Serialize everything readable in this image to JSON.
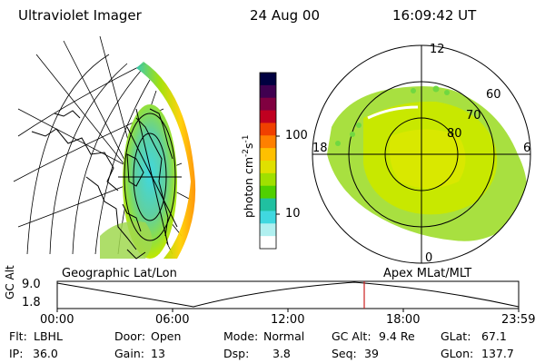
{
  "header": {
    "instrument": "Ultraviolet Imager",
    "date": "24 Aug 00",
    "time": "16:09:42 UT"
  },
  "geo_panel": {
    "label": "Geographic Lat/Lon"
  },
  "polar_panel": {
    "label": "Apex MLat/MLT",
    "mlt_labels": [
      "12",
      "18",
      "6",
      "0"
    ],
    "lat_labels": [
      "60",
      "70",
      "80"
    ]
  },
  "colorbar": {
    "units_label": "photon cm",
    "units_exp1": "-2",
    "units_mid": "s",
    "units_exp2": "-1",
    "ticks": [
      "100",
      "10"
    ],
    "colors": [
      "#000040",
      "#400050",
      "#800040",
      "#c00020",
      "#f04000",
      "#ff8000",
      "#ffc000",
      "#e0e000",
      "#a0e000",
      "#50d000",
      "#20c0a0",
      "#40d8e0",
      "#b0f0f0",
      "#ffffff"
    ]
  },
  "altitude_plot": {
    "ylabel": "GC Alt",
    "yticks": [
      "9.0",
      "1.8"
    ],
    "xticks": [
      "00:00",
      "06:00",
      "12:00",
      "18:00",
      "23:59"
    ],
    "current_time_color": "#cc2020"
  },
  "status": {
    "flt_label": "Flt:",
    "flt_value": "LBHL",
    "ip_label": "IP:",
    "ip_value": "36.0",
    "door_label": "Door:",
    "door_value": "Open",
    "gain_label": "Gain:",
    "gain_value": "13",
    "mode_label": "Mode:",
    "mode_value": "Normal",
    "dsp_label": "Dsp:",
    "dsp_value": "3.8",
    "gcalt_label": "GC Alt:",
    "gcalt_value": "9.4 Re",
    "seq_label": "Seq:",
    "seq_value": "39",
    "glat_label": "GLat:",
    "glat_value": "67.1",
    "glon_label": "GLon:",
    "glon_value": "137.7"
  }
}
